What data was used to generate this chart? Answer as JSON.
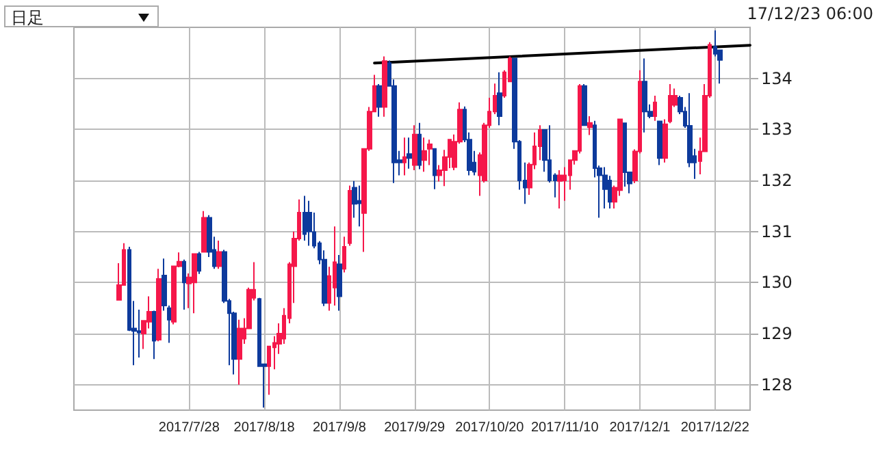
{
  "chart_data": {
    "type": "candlestick",
    "annotations": [
      "日足",
      "17/12/23 06:00"
    ],
    "categories": [
      null,
      null,
      null,
      null,
      null,
      null,
      null,
      null,
      null,
      null,
      null,
      null,
      null,
      null,
      "2017/7/28",
      null,
      null,
      null,
      null,
      null,
      null,
      null,
      null,
      null,
      null,
      null,
      null,
      null,
      null,
      "2017/8/18",
      null,
      null,
      null,
      null,
      null,
      null,
      null,
      null,
      null,
      null,
      null,
      null,
      null,
      null,
      "2017/9/8",
      null,
      null,
      null,
      null,
      null,
      null,
      null,
      null,
      null,
      null,
      null,
      null,
      null,
      null,
      "2017/9/29",
      null,
      null,
      null,
      null,
      null,
      null,
      null,
      null,
      null,
      null,
      null,
      null,
      null,
      null,
      "2017/10/20",
      null,
      null,
      null,
      null,
      null,
      null,
      null,
      null,
      null,
      null,
      null,
      null,
      null,
      null,
      "2017/11/10",
      null,
      null,
      null,
      null,
      null,
      null,
      null,
      null,
      null,
      null,
      null,
      null,
      null,
      null,
      "2017/12/1",
      null,
      null,
      null,
      null,
      null,
      null,
      null,
      null,
      null,
      null,
      null,
      null,
      null,
      null,
      "2017/12/22",
      null,
      null,
      null,
      null,
      null,
      null,
      null
    ],
    "series": [
      {
        "colors": [
          "#f5174a",
          "#f5174a",
          "#0d3a9c",
          "#0d3a9c",
          "#0d3a9c",
          "#f5174a",
          "#f5174a",
          "#0d3a9c",
          "#f5174a",
          "#0d3a9c",
          "#0d3a9c",
          "#f5174a",
          "#f5174a",
          "#0d3a9c",
          "#f5174a",
          "#f5174a",
          "#0d3a9c",
          "#f5174a",
          "#0d3a9c",
          "#0d3a9c",
          "#f5174a",
          "#0d3a9c",
          "#0d3a9c",
          "#0d3a9c",
          "#f5174a",
          "#f5174a",
          "#f5174a",
          "#f5174a",
          "#0d3a9c",
          "#0d3a9c",
          "#f5174a",
          "#f5174a",
          "#f5174a",
          "#f5174a",
          "#f5174a",
          "#f5174a",
          "#f5174a",
          "#0d3a9c",
          "#0d3a9c",
          "#0d3a9c",
          "#0d3a9c",
          "#0d3a9c",
          "#f5174a",
          "#f5174a",
          "#0d3a9c",
          "#f5174a",
          "#f5174a",
          "#0d3a9c",
          "#0d3a9c",
          "#f5174a",
          "#f5174a",
          "#f5174a",
          "#0d3a9c",
          "#f5174a",
          "#0d3a9c",
          "#0d3a9c",
          "#0d3a9c",
          "#f5174a",
          "#0d3a9c",
          "#f5174a",
          "#0d3a9c",
          "#f5174a",
          "#f5174a",
          "#0d3a9c",
          "#f5174a",
          "#f5174a",
          "#f5174a",
          "#f5174a",
          "#f5174a",
          "#0d3a9c",
          "#0d3a9c",
          "#0d3a9c",
          "#f5174a",
          "#f5174a",
          "#f5174a",
          "#f5174a",
          "#0d3a9c",
          "#f5174a",
          "#f5174a",
          "#0d3a9c",
          "#0d3a9c",
          "#0d3a9c",
          "#f5174a",
          "#f5174a",
          "#f5174a",
          "#0d3a9c",
          "#0d3a9c",
          "#0d3a9c",
          "#f5174a",
          "#f5174a",
          "#f5174a",
          "#f5174a",
          "#f5174a",
          "#0d3a9c",
          "#f5174a",
          "#0d3a9c",
          "#0d3a9c",
          "#0d3a9c",
          "#0d3a9c",
          "#f5174a",
          "#f5174a",
          "#0d3a9c",
          "#0d3a9c",
          "#f5174a",
          "#f5174a",
          "#0d3a9c",
          "#0d3a9c",
          "#f5174a",
          "#0d3a9c",
          "#f5174a",
          "#f5174a",
          "#f5174a",
          "#0d3a9c",
          "#0d3a9c",
          "#0d3a9c",
          "#0d3a9c",
          "#f5174a",
          "#f5174a",
          "#f5174a",
          "#0d3a9c",
          "#0d3a9c",
          null,
          null,
          null,
          null,
          null,
          null
        ],
        "ohlc": [
          [
            129.66,
            130.38,
            129.66,
            129.95
          ],
          [
            129.95,
            130.77,
            129.95,
            130.64
          ],
          [
            130.64,
            130.7,
            129.05,
            129.07
          ],
          [
            129.1,
            129.64,
            128.38,
            129.05
          ],
          [
            129.05,
            129.47,
            128.53,
            129.02
          ],
          [
            129.0,
            129.25,
            128.7,
            129.25
          ],
          [
            129.23,
            129.73,
            129.1,
            129.43
          ],
          [
            129.43,
            129.45,
            128.5,
            128.86
          ],
          [
            128.88,
            130.27,
            128.85,
            130.07
          ],
          [
            130.14,
            130.47,
            129.45,
            129.55
          ],
          [
            129.5,
            129.55,
            128.82,
            129.27
          ],
          [
            129.23,
            130.32,
            129.18,
            130.32
          ],
          [
            130.32,
            130.59,
            130.3,
            130.41
          ],
          [
            130.41,
            130.45,
            129.47,
            130.0
          ],
          [
            129.98,
            130.18,
            129.5,
            130.1
          ],
          [
            130.0,
            130.56,
            129.4,
            130.56
          ],
          [
            130.56,
            130.6,
            130.17,
            130.23
          ],
          [
            130.6,
            131.4,
            130.6,
            131.27
          ],
          [
            131.27,
            131.32,
            130.5,
            130.6
          ],
          [
            130.64,
            130.9,
            130.27,
            130.32
          ],
          [
            130.32,
            130.82,
            130.27,
            130.6
          ],
          [
            130.6,
            130.64,
            129.6,
            129.64
          ],
          [
            129.64,
            129.68,
            128.38,
            129.4
          ],
          [
            129.4,
            129.43,
            128.2,
            128.5
          ],
          [
            128.5,
            129.27,
            128.0,
            129.1
          ],
          [
            128.9,
            129.3,
            128.8,
            129.1
          ],
          [
            129.1,
            129.9,
            129.1,
            129.86
          ],
          [
            129.7,
            130.4,
            129.65,
            129.86
          ],
          [
            129.68,
            129.7,
            128.36,
            128.36
          ],
          [
            128.4,
            128.4,
            127.55,
            128.36
          ],
          [
            128.36,
            128.75,
            127.8,
            128.75
          ],
          [
            128.73,
            128.95,
            128.3,
            128.82
          ],
          [
            128.8,
            129.2,
            128.6,
            129.0
          ],
          [
            128.9,
            129.5,
            128.8,
            129.35
          ],
          [
            129.3,
            130.4,
            129.2,
            130.36
          ],
          [
            130.32,
            131.0,
            129.6,
            130.86
          ],
          [
            130.86,
            131.63,
            130.82,
            131.37
          ],
          [
            131.37,
            131.7,
            130.82,
            130.95
          ],
          [
            131.37,
            131.6,
            130.72,
            131.0
          ],
          [
            130.99,
            131.37,
            130.67,
            130.72
          ],
          [
            130.77,
            130.81,
            130.36,
            130.45
          ],
          [
            130.45,
            130.63,
            129.54,
            129.6
          ],
          [
            129.6,
            130.31,
            129.45,
            130.13
          ],
          [
            129.9,
            131.1,
            129.55,
            130.4
          ],
          [
            130.36,
            130.54,
            129.45,
            129.73
          ],
          [
            130.27,
            130.9,
            130.2,
            130.7
          ],
          [
            130.77,
            131.9,
            130.72,
            131.8
          ],
          [
            131.86,
            131.99,
            131.27,
            131.54
          ],
          [
            131.6,
            131.9,
            131.1,
            131.55
          ],
          [
            131.36,
            132.62,
            130.6,
            132.62
          ],
          [
            132.62,
            133.44,
            132.58,
            133.35
          ],
          [
            133.35,
            134.07,
            133.35,
            133.85
          ],
          [
            133.85,
            133.89,
            133.25,
            133.44
          ],
          [
            133.44,
            134.43,
            133.25,
            134.34
          ],
          [
            134.3,
            134.35,
            133.85,
            133.85
          ],
          [
            133.85,
            133.98,
            131.95,
            132.35
          ],
          [
            132.4,
            132.58,
            132.1,
            132.35
          ],
          [
            132.35,
            132.84,
            132.1,
            132.46
          ],
          [
            132.52,
            132.84,
            132.23,
            132.44
          ],
          [
            132.3,
            133.08,
            132.2,
            132.9
          ],
          [
            132.9,
            133.13,
            132.22,
            132.3
          ],
          [
            132.4,
            132.84,
            132.17,
            132.58
          ],
          [
            132.62,
            132.8,
            132.3,
            132.71
          ],
          [
            132.62,
            132.62,
            131.83,
            132.1
          ],
          [
            132.1,
            132.3,
            131.98,
            132.2
          ],
          [
            132.2,
            132.6,
            131.89,
            132.46
          ],
          [
            132.46,
            132.8,
            132.24,
            132.8
          ],
          [
            132.26,
            132.9,
            132.2,
            132.76
          ],
          [
            132.76,
            133.53,
            132.72,
            133.39
          ],
          [
            133.39,
            133.45,
            132.75,
            132.8
          ],
          [
            132.8,
            132.94,
            132.1,
            132.2
          ],
          [
            132.35,
            132.58,
            132.1,
            132.17
          ],
          [
            132.1,
            132.55,
            131.7,
            132.5
          ],
          [
            132.0,
            133.13,
            131.96,
            133.08
          ],
          [
            133.08,
            133.62,
            133.03,
            133.35
          ],
          [
            133.35,
            133.9,
            133.3,
            133.66
          ],
          [
            133.71,
            134.12,
            133.08,
            133.26
          ],
          [
            133.66,
            134.16,
            133.62,
            134.12
          ],
          [
            133.94,
            134.43,
            133.94,
            134.39
          ],
          [
            134.39,
            134.39,
            132.62,
            132.76
          ],
          [
            132.76,
            132.79,
            131.82,
            132.0
          ],
          [
            132.0,
            132.35,
            131.54,
            131.86
          ],
          [
            131.86,
            132.35,
            131.72,
            132.31
          ],
          [
            132.31,
            132.94,
            132.22,
            132.67
          ],
          [
            132.67,
            133.08,
            132.4,
            132.99
          ],
          [
            132.99,
            132.99,
            132.17,
            132.4
          ],
          [
            132.4,
            133.08,
            131.96,
            132.0
          ],
          [
            132.1,
            132.14,
            131.67,
            132.0
          ],
          [
            131.99,
            132.2,
            131.45,
            132.1
          ],
          [
            132.0,
            132.26,
            131.6,
            132.1
          ],
          [
            132.1,
            132.4,
            131.82,
            132.4
          ],
          [
            132.4,
            132.58,
            132.31,
            132.58
          ],
          [
            132.58,
            133.89,
            132.53,
            133.85
          ],
          [
            133.85,
            133.89,
            133.08,
            133.08
          ],
          [
            133.04,
            133.26,
            132.89,
            133.13
          ],
          [
            133.08,
            133.17,
            132.06,
            132.24
          ],
          [
            132.24,
            132.29,
            131.27,
            132.1
          ],
          [
            132.1,
            132.26,
            131.45,
            131.83
          ],
          [
            132.0,
            132.09,
            131.45,
            131.58
          ],
          [
            131.58,
            131.9,
            131.45,
            131.86
          ],
          [
            131.81,
            133.2,
            131.7,
            133.2
          ],
          [
            133.12,
            133.12,
            131.88,
            132.16
          ],
          [
            132.16,
            132.16,
            131.75,
            131.94
          ],
          [
            132.0,
            132.61,
            131.95,
            132.57
          ],
          [
            132.57,
            134.16,
            132.53,
            133.94
          ],
          [
            133.94,
            134.39,
            132.94,
            133.35
          ],
          [
            133.35,
            133.49,
            133.22,
            133.26
          ],
          [
            133.26,
            133.66,
            133.17,
            133.53
          ],
          [
            133.16,
            133.16,
            132.3,
            132.44
          ],
          [
            132.44,
            133.2,
            132.35,
            133.1
          ],
          [
            133.16,
            133.89,
            133.12,
            133.66
          ],
          [
            133.48,
            133.8,
            133.44,
            133.66
          ],
          [
            133.62,
            133.66,
            133.3,
            133.35
          ],
          [
            133.35,
            133.44,
            133.03,
            133.07
          ],
          [
            133.07,
            133.71,
            132.26,
            132.35
          ],
          [
            132.48,
            132.62,
            132.03,
            132.35
          ],
          [
            132.38,
            132.84,
            132.12,
            132.57
          ],
          [
            132.57,
            133.89,
            132.57,
            133.66
          ],
          [
            133.66,
            134.71,
            133.62,
            134.66
          ],
          [
            134.62,
            134.94,
            134.43,
            134.48
          ],
          [
            134.55,
            134.55,
            133.9,
            134.36
          ],
          null,
          null,
          null,
          null,
          null,
          null
        ]
      },
      {
        "type": "line",
        "color": "#000000",
        "values": [
          null,
          null,
          null,
          null,
          null,
          null,
          null,
          null,
          null,
          null,
          null,
          null,
          null,
          null,
          null,
          null,
          null,
          null,
          null,
          null,
          null,
          null,
          null,
          null,
          null,
          null,
          null,
          null,
          null,
          null,
          null,
          null,
          null,
          null,
          null,
          null,
          null,
          null,
          null,
          null,
          null,
          null,
          null,
          null,
          null,
          null,
          null,
          null,
          null,
          null,
          null,
          134.3,
          null,
          null,
          null,
          null,
          null,
          null,
          null,
          null,
          null,
          null,
          null,
          null,
          null,
          null,
          null,
          null,
          null,
          null,
          null,
          null,
          null,
          null,
          null,
          null,
          null,
          null,
          null,
          null,
          null,
          null,
          null,
          null,
          null,
          null,
          null,
          null,
          null,
          null,
          null,
          null,
          null,
          null,
          null,
          null,
          null,
          null,
          null,
          null,
          null,
          null,
          null,
          null,
          null,
          null,
          null,
          null,
          null,
          null,
          null,
          null,
          null,
          null,
          null,
          null,
          null,
          null,
          null,
          null,
          null,
          null,
          null,
          null,
          null,
          null,
          134.65
        ]
      }
    ],
    "ylim": [
      127.5,
      135
    ],
    "yticks": [
      128,
      129,
      130,
      131,
      132,
      133,
      134
    ],
    "grid": true
  }
}
